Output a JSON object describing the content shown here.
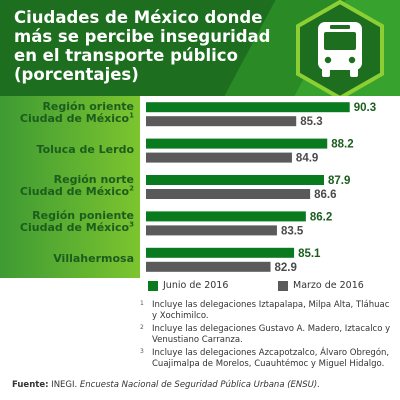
{
  "title": {
    "lines": [
      "Ciudades de México donde",
      "más se percibe inseguridad",
      "en el transporte público",
      "(porcentajes)"
    ]
  },
  "icon": "bus-icon",
  "colors": {
    "dark_green": "#1d6f1f",
    "bar_green": "#0a7a1f",
    "bar_gray": "#5a5a5a",
    "accent_lime": "#8ccf34"
  },
  "chart_data": {
    "type": "bar",
    "orientation": "horizontal",
    "categories": [
      {
        "lines": [
          "Región oriente",
          "Ciudad de México"
        ],
        "sup": "1"
      },
      {
        "lines": [
          "Toluca de Lerdo"
        ],
        "sup": ""
      },
      {
        "lines": [
          "Región norte",
          "Ciudad de México"
        ],
        "sup": "2"
      },
      {
        "lines": [
          "Región poniente",
          "Ciudad de México"
        ],
        "sup": "3"
      },
      {
        "lines": [
          "Villahermosa"
        ],
        "sup": ""
      }
    ],
    "series": [
      {
        "name": "Junio de 2016",
        "color": "#0a7a1f",
        "values": [
          90.3,
          88.2,
          87.9,
          86.2,
          85.1
        ]
      },
      {
        "name": "Marzo de 2016",
        "color": "#5a5a5a",
        "values": [
          85.3,
          84.9,
          86.6,
          83.5,
          82.9
        ]
      }
    ],
    "xlim": [
      0,
      100
    ],
    "legend_position": "bottom"
  },
  "notes": [
    {
      "num": "1",
      "text": "Incluye las delegaciones Iztapalapa, Milpa Alta, Tláhuac y Xochimilco."
    },
    {
      "num": "2",
      "text": "Incluye las delegaciones Gustavo A. Madero, Iztacalco y Venustiano Carranza."
    },
    {
      "num": "3",
      "text": "Incluye las delegaciones Azcapotzalco, Álvaro Obregón, Cuajimalpa de Morelos, Cuauhtémoc y Miguel Hidalgo."
    }
  ],
  "source": {
    "label": "Fuente:",
    "org": " INEGI. ",
    "survey": "Encuesta Nacional de Seguridad Pública Urbana (ENSU)."
  }
}
